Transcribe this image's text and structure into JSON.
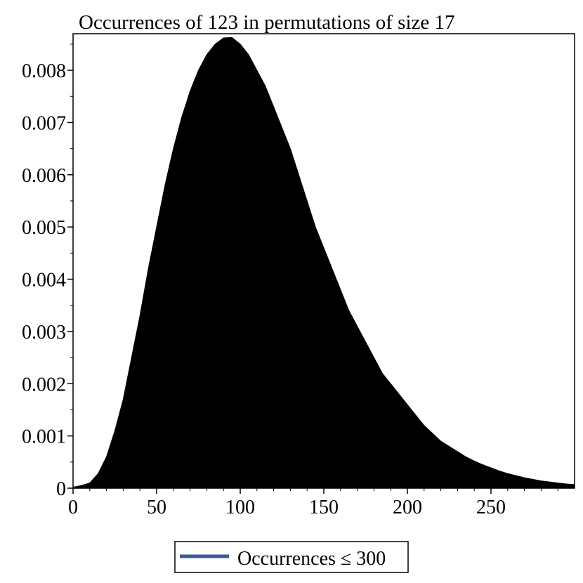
{
  "chart_data": {
    "type": "area",
    "title": "Occurrences of 123 in permutations of size 17",
    "xlabel": "",
    "ylabel": "",
    "xlim": [
      0,
      300
    ],
    "ylim": [
      0,
      0.0087
    ],
    "x_ticks": [
      0,
      50,
      100,
      150,
      200,
      250
    ],
    "x_tick_labels": [
      "0",
      "50",
      "100",
      "150",
      "200",
      "250"
    ],
    "y_ticks": [
      0,
      0.001,
      0.002,
      0.003,
      0.004,
      0.005,
      0.006,
      0.007,
      0.008
    ],
    "y_tick_labels": [
      "0",
      "0.001",
      "0.002",
      "0.003",
      "0.004",
      "0.005",
      "0.006",
      "0.007",
      "0.008"
    ],
    "grid": false,
    "legend": {
      "position": "bottom",
      "entries": [
        {
          "label": "Occurrences ≤ 300",
          "color": "#3b5a9a"
        }
      ]
    },
    "fill_color": "#000000",
    "series": [
      {
        "label": "Occurrences ≤ 300",
        "x": [
          0,
          5,
          10,
          15,
          20,
          25,
          30,
          35,
          40,
          45,
          50,
          55,
          60,
          65,
          70,
          75,
          80,
          85,
          90,
          95,
          100,
          105,
          110,
          115,
          120,
          125,
          130,
          135,
          140,
          145,
          150,
          155,
          160,
          165,
          170,
          175,
          180,
          185,
          190,
          195,
          200,
          205,
          210,
          215,
          220,
          225,
          230,
          235,
          240,
          245,
          250,
          255,
          260,
          265,
          270,
          275,
          280,
          285,
          290,
          295,
          300
        ],
        "y": [
          2e-05,
          5e-05,
          0.0001,
          0.00028,
          0.0006,
          0.0011,
          0.0017,
          0.0025,
          0.0033,
          0.0042,
          0.005,
          0.0058,
          0.0065,
          0.0071,
          0.0076,
          0.008,
          0.0083,
          0.0085,
          0.00862,
          0.00863,
          0.0085,
          0.0083,
          0.008,
          0.0077,
          0.0073,
          0.0069,
          0.0065,
          0.006,
          0.0055,
          0.005,
          0.0046,
          0.0042,
          0.0038,
          0.0034,
          0.0031,
          0.0028,
          0.0025,
          0.0022,
          0.002,
          0.0018,
          0.0016,
          0.0014,
          0.0012,
          0.00105,
          0.0009,
          0.0008,
          0.0007,
          0.0006,
          0.00052,
          0.00045,
          0.00039,
          0.00033,
          0.00028,
          0.00024,
          0.0002,
          0.00017,
          0.00014,
          0.00012,
          0.0001,
          8e-05,
          7e-05
        ]
      }
    ]
  }
}
